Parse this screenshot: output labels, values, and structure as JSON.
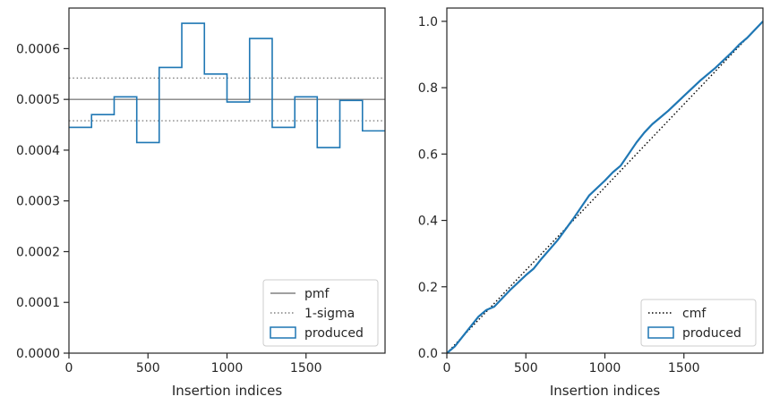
{
  "chart_data": [
    {
      "type": "step",
      "xlabel": "Insertion indices",
      "ylabel": "",
      "xlim": [
        0,
        2000
      ],
      "ylim": [
        0,
        0.00068
      ],
      "xticks": [
        "0",
        "500",
        "1000",
        "1500"
      ],
      "xtick_values": [
        0,
        500,
        1000,
        1500
      ],
      "yticks": [
        "0.0000",
        "0.0001",
        "0.0002",
        "0.0003",
        "0.0004",
        "0.0005",
        "0.0006"
      ],
      "ytick_values": [
        0,
        0.0001,
        0.0002,
        0.0003,
        0.0004,
        0.0005,
        0.0006
      ],
      "pmf": 0.0005,
      "sigma_band": [
        0.000458,
        0.000542
      ],
      "produced": {
        "bin_edges": [
          0,
          143,
          286,
          429,
          571,
          714,
          857,
          1000,
          1143,
          1286,
          1429,
          1571,
          1714,
          1857,
          2000
        ],
        "values": [
          0.000445,
          0.00047,
          0.000505,
          0.000415,
          0.000563,
          0.00065,
          0.00055,
          0.000495,
          0.00062,
          0.000445,
          0.000505,
          0.000405,
          0.000498,
          0.000438
        ]
      },
      "legend": [
        "pmf",
        "1-sigma",
        "produced"
      ],
      "legend_position": "lower-right",
      "colors": {
        "pmf": "#808080",
        "sigma": "#808080",
        "produced": "#1f77b4"
      },
      "grid": false
    },
    {
      "type": "line",
      "xlabel": "Insertion indices",
      "ylabel": "",
      "xlim": [
        0,
        2000
      ],
      "ylim": [
        0,
        1.04
      ],
      "xticks": [
        "0",
        "500",
        "1000",
        "1500"
      ],
      "xtick_values": [
        0,
        500,
        1000,
        1500
      ],
      "yticks": [
        "0.0",
        "0.2",
        "0.4",
        "0.6",
        "0.8",
        "1.0"
      ],
      "ytick_values": [
        0,
        0.2,
        0.4,
        0.6,
        0.8,
        1.0
      ],
      "cmf": {
        "x": [
          0,
          2000
        ],
        "y": [
          0,
          1
        ]
      },
      "produced": {
        "x": [
          0,
          50,
          100,
          150,
          200,
          250,
          300,
          400,
          500,
          550,
          600,
          700,
          800,
          850,
          900,
          1000,
          1050,
          1100,
          1150,
          1200,
          1250,
          1300,
          1350,
          1400,
          1500,
          1600,
          1700,
          1800,
          1850,
          1900,
          1950,
          2000
        ],
        "y": [
          0,
          0.02,
          0.05,
          0.08,
          0.11,
          0.13,
          0.14,
          0.19,
          0.235,
          0.255,
          0.285,
          0.34,
          0.405,
          0.44,
          0.475,
          0.52,
          0.545,
          0.565,
          0.6,
          0.635,
          0.665,
          0.69,
          0.71,
          0.73,
          0.775,
          0.82,
          0.86,
          0.905,
          0.93,
          0.95,
          0.975,
          1.0
        ]
      },
      "legend": [
        "cmf",
        "produced"
      ],
      "legend_position": "lower-right",
      "colors": {
        "cmf": "#000000",
        "produced": "#1f77b4"
      },
      "grid": false
    }
  ]
}
